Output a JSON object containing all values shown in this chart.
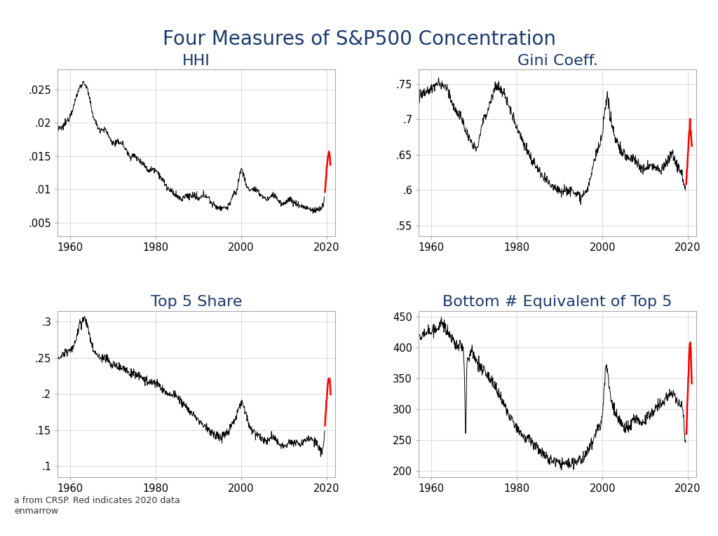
{
  "title": "Four Measures of S&P500 Concentration",
  "title_color": "#1a3a6b",
  "title_fontsize": 20,
  "subtitle_color": "#1a3a6b",
  "subtitle_fontsize": 16,
  "panels": [
    {
      "title": "HHI",
      "ylim": [
        0.003,
        0.028
      ],
      "yticks": [
        0.005,
        0.01,
        0.015,
        0.02,
        0.025
      ],
      "ytick_labels": [
        ".005",
        ".01",
        ".015",
        ".02",
        ".025"
      ],
      "xlim": [
        1957,
        2022
      ],
      "xticks": [
        1960,
        1980,
        2000,
        2020
      ]
    },
    {
      "title": "Gini Coeff.",
      "ylim": [
        0.535,
        0.77
      ],
      "yticks": [
        0.55,
        0.6,
        0.65,
        0.7,
        0.75
      ],
      "ytick_labels": [
        ".55",
        ".6",
        ".65",
        ".7",
        ".75"
      ],
      "xlim": [
        1957,
        2022
      ],
      "xticks": [
        1960,
        1980,
        2000,
        2020
      ]
    },
    {
      "title": "Top 5 Share",
      "ylim": [
        0.085,
        0.315
      ],
      "yticks": [
        0.1,
        0.15,
        0.2,
        0.25,
        0.3
      ],
      "ytick_labels": [
        ".1",
        ".15",
        ".2",
        ".25",
        ".3"
      ],
      "xlim": [
        1957,
        2022
      ],
      "xticks": [
        1960,
        1980,
        2000,
        2020
      ]
    },
    {
      "title": "Bottom # Equivalent of Top 5",
      "ylim": [
        190,
        460
      ],
      "yticks": [
        200,
        250,
        300,
        350,
        400,
        450
      ],
      "ytick_labels": [
        "200",
        "250",
        "300",
        "350",
        "400",
        "450"
      ],
      "xlim": [
        1957,
        2022
      ],
      "xticks": [
        1960,
        1980,
        2000,
        2020
      ]
    }
  ],
  "line_color": "#000000",
  "red_color": "#ff0000",
  "red_start_year": 2019.5,
  "background_color": "#ffffff",
  "grid_color": "#cccccc",
  "annotation_text": "a from CRSP. Red indicates 2020 data\nenmarrow",
  "annotation_fontsize": 9
}
